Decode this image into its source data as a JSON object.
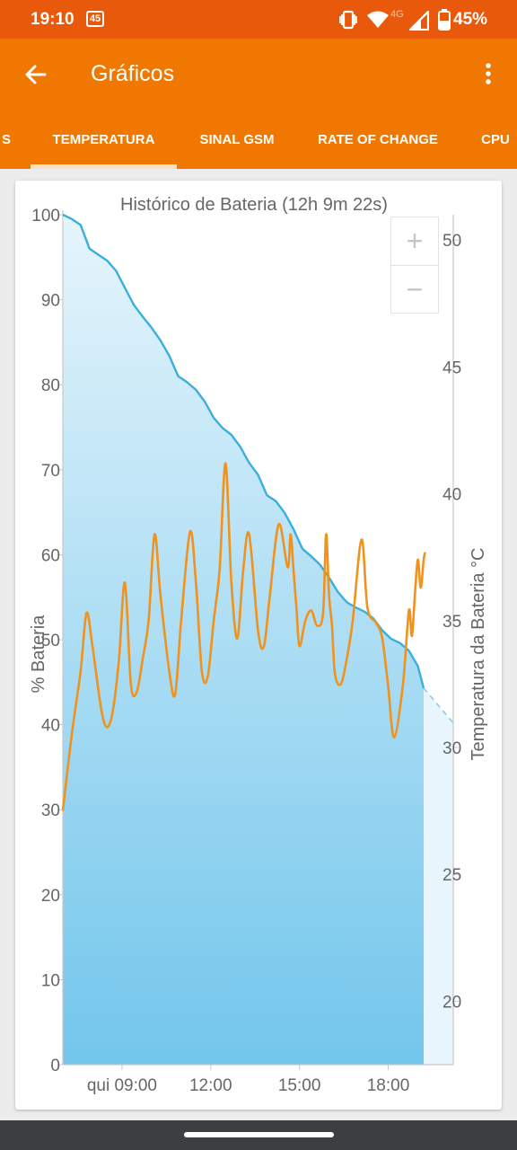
{
  "status_bar": {
    "time": "19:10",
    "notification_badge": "45",
    "network": "4G",
    "battery": "45%",
    "icons": [
      "vibrate-icon",
      "wifi-icon",
      "cell-signal-icon",
      "battery-icon"
    ]
  },
  "app_bar": {
    "title": "Gráficos",
    "back_icon": "arrow-back-icon",
    "menu_icon": "more-vert-icon",
    "color": "#f07800"
  },
  "tabs": [
    {
      "label": "S",
      "active": false
    },
    {
      "label": "TEMPERATURA",
      "active": true
    },
    {
      "label": "SINAL GSM",
      "active": false
    },
    {
      "label": "RATE OF CHANGE",
      "active": false
    },
    {
      "label": "CPU",
      "active": false
    }
  ],
  "zoom": {
    "in_label": "+",
    "out_label": "−"
  },
  "chart_data": {
    "type": "line",
    "title": "Histórico de Bateria (12h 9m 22s)",
    "y_left": {
      "label": "% Bateria",
      "range": [
        0,
        100
      ],
      "ticks": [
        "100",
        "90",
        "80",
        "70",
        "60",
        "50",
        "40",
        "30",
        "20",
        "10",
        "0"
      ]
    },
    "y_right": {
      "label": "Temperatura da Bateria °C",
      "range": [
        17.5,
        51
      ],
      "ticks": [
        "50",
        "45",
        "40",
        "35",
        "30",
        "25",
        "20"
      ]
    },
    "x_axis": {
      "ticks": [
        "qui 09:00",
        "12:00",
        "15:00",
        "18:00"
      ],
      "tick_hours": [
        9,
        12,
        15,
        18
      ],
      "range_hours": [
        7,
        20.2
      ]
    },
    "series": [
      {
        "color": "#3aaede",
        "axis": "left",
        "x_hours": [
          7.0,
          7.3,
          7.6,
          7.9,
          8.2,
          8.5,
          8.8,
          9.1,
          9.4,
          9.7,
          10.0,
          10.3,
          10.6,
          10.9,
          11.2,
          11.5,
          11.8,
          12.1,
          12.4,
          12.7,
          13.0,
          13.3,
          13.6,
          13.9,
          14.2,
          14.5,
          14.8,
          15.1,
          15.4,
          15.7,
          16.0,
          16.3,
          16.6,
          16.9,
          17.2,
          17.5,
          17.8,
          18.1,
          18.4,
          18.7,
          19.0,
          19.2
        ],
        "values": [
          100,
          99.5,
          98.8,
          96,
          95.3,
          94.6,
          93.4,
          91.4,
          89.4,
          88,
          86.7,
          85.2,
          83.4,
          81,
          80.3,
          79.4,
          78,
          76.1,
          74.9,
          74.1,
          72.7,
          70.8,
          69.4,
          67,
          66.3,
          64.9,
          63,
          60.7,
          59.8,
          58.8,
          57.3,
          55.6,
          54.4,
          53.8,
          53.3,
          52.5,
          51.1,
          50.1,
          49.6,
          48.7,
          46.9,
          44.3
        ]
      },
      {
        "color": "#8ecbe8",
        "axis": "left",
        "style": "dashed-projection",
        "x_hours": [
          19.2,
          20.2
        ],
        "values": [
          44.3,
          40.2
        ]
      },
      {
        "color": "#f0921e",
        "axis": "right",
        "x_hours": [
          7.0,
          7.3,
          7.6,
          7.8,
          8.0,
          8.3,
          8.5,
          8.7,
          8.9,
          9.1,
          9.3,
          9.5,
          9.7,
          9.9,
          10.1,
          10.3,
          10.6,
          10.8,
          11.0,
          11.3,
          11.5,
          11.7,
          11.9,
          12.1,
          12.3,
          12.5,
          12.7,
          12.9,
          13.1,
          13.3,
          13.6,
          13.8,
          14.0,
          14.3,
          14.6,
          14.7,
          14.8,
          14.9,
          15.0,
          15.2,
          15.4,
          15.6,
          15.8,
          15.9,
          16.0,
          16.1,
          16.2,
          16.4,
          16.6,
          16.8,
          17.1,
          17.3,
          17.6,
          17.8,
          18.0,
          18.2,
          18.5,
          18.7,
          18.8,
          18.9,
          19.0,
          19.1,
          19.2,
          19.25
        ],
        "values": [
          27.5,
          30.5,
          33,
          35.3,
          34,
          31.5,
          30.8,
          31.5,
          33.5,
          36.5,
          32.5,
          32.2,
          33.5,
          35,
          38.4,
          36,
          33,
          32.1,
          35,
          38.5,
          36.5,
          33,
          32.8,
          35,
          37,
          41.2,
          36.5,
          34.3,
          37,
          38.4,
          34.6,
          34,
          36,
          38.8,
          37.1,
          38.4,
          37,
          35.5,
          34,
          35,
          35.4,
          34.8,
          35.3,
          38.4,
          36,
          34.8,
          32.9,
          32.5,
          33.5,
          35,
          38.2,
          35.5,
          34.9,
          34.3,
          32.4,
          30.4,
          32.5,
          35.4,
          34.4,
          36,
          37.4,
          36.3,
          37.4,
          37.7
        ]
      }
    ],
    "area_gradient": [
      "#e6f5fc",
      "#72c6ec"
    ],
    "projection_fill": "#e8f5fc"
  }
}
